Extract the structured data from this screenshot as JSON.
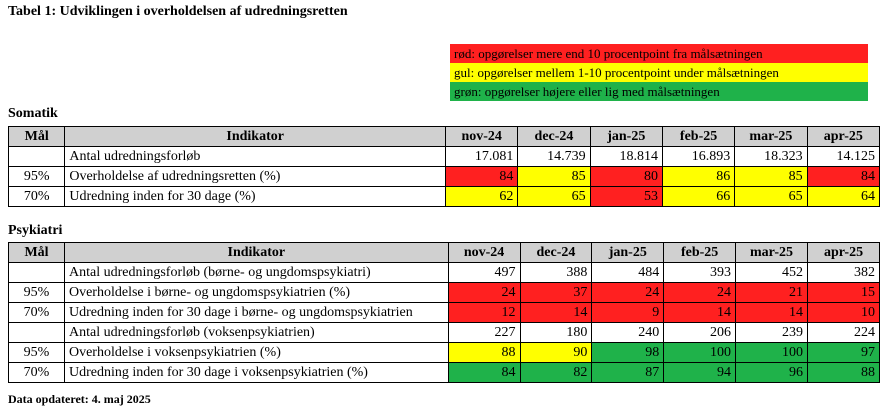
{
  "title": "Tabel 1: Udviklingen i overholdelsen af udredningsretten",
  "colors": {
    "red": "#ff2020",
    "yellow": "#ffff00",
    "green": "#1fb24a",
    "header": "#d0d0d0"
  },
  "legend": [
    {
      "text": "rød: opgørelser mere end 10 procentpoint fra målsætningen",
      "color": "#ff2020"
    },
    {
      "text": "gul: opgørelser mellem 1-10 procentpoint under målsætningen",
      "color": "#ffff00"
    },
    {
      "text": "grøn: opgørelser højere eller lig med målsætningen",
      "color": "#1fb24a"
    }
  ],
  "columns": {
    "goal": "Mål",
    "indicator": "Indikator",
    "months": [
      "nov-24",
      "dec-24",
      "jan-25",
      "feb-25",
      "mar-25",
      "apr-25"
    ]
  },
  "sections": [
    {
      "label": "Somatik",
      "rows": [
        {
          "goal": "",
          "indicator": "Antal udredningsforløb",
          "values": [
            "17.081",
            "14.739",
            "18.814",
            "16.893",
            "18.323",
            "14.125"
          ],
          "colors": [
            "",
            "",
            "",
            "",
            "",
            ""
          ]
        },
        {
          "goal": "95%",
          "indicator": "Overholdelse af udredningsretten (%)",
          "values": [
            "84",
            "85",
            "80",
            "86",
            "85",
            "84"
          ],
          "colors": [
            "red",
            "yellow",
            "red",
            "yellow",
            "yellow",
            "red"
          ]
        },
        {
          "goal": "70%",
          "indicator": "Udredning inden for 30 dage (%)",
          "values": [
            "62",
            "65",
            "53",
            "66",
            "65",
            "64"
          ],
          "colors": [
            "yellow",
            "yellow",
            "red",
            "yellow",
            "yellow",
            "yellow"
          ]
        }
      ]
    },
    {
      "label": "Psykiatri",
      "rows": [
        {
          "goal": "",
          "indicator": "Antal udredningsforløb (børne- og ungdomspsykiatri)",
          "values": [
            "497",
            "388",
            "484",
            "393",
            "452",
            "382"
          ],
          "colors": [
            "",
            "",
            "",
            "",
            "",
            ""
          ]
        },
        {
          "goal": "95%",
          "indicator": "Overholdelse i børne- og ungdomspsykiatrien (%)",
          "values": [
            "24",
            "37",
            "24",
            "24",
            "21",
            "15"
          ],
          "colors": [
            "red",
            "red",
            "red",
            "red",
            "red",
            "red"
          ]
        },
        {
          "goal": "70%",
          "indicator": "Udredning inden for 30 dage i børne- og ungdomspsykiatrien",
          "values": [
            "12",
            "14",
            "9",
            "14",
            "14",
            "10"
          ],
          "colors": [
            "red",
            "red",
            "red",
            "red",
            "red",
            "red"
          ]
        },
        {
          "goal": "",
          "indicator": "Antal udredningsforløb (voksenpsykiatrien)",
          "values": [
            "227",
            "180",
            "240",
            "206",
            "239",
            "224"
          ],
          "colors": [
            "",
            "",
            "",
            "",
            "",
            ""
          ]
        },
        {
          "goal": "95%",
          "indicator": "Overholdelse i voksenpsykiatrien (%)",
          "values": [
            "88",
            "90",
            "98",
            "100",
            "100",
            "97"
          ],
          "colors": [
            "yellow",
            "yellow",
            "green",
            "green",
            "green",
            "green"
          ]
        },
        {
          "goal": "70%",
          "indicator": "Udredning inden for 30 dage i voksenpsykiatrien (%)",
          "values": [
            "84",
            "82",
            "87",
            "94",
            "96",
            "88"
          ],
          "colors": [
            "green",
            "green",
            "green",
            "green",
            "green",
            "green"
          ]
        }
      ]
    }
  ],
  "footer": "Data opdateret: 4. maj 2025"
}
